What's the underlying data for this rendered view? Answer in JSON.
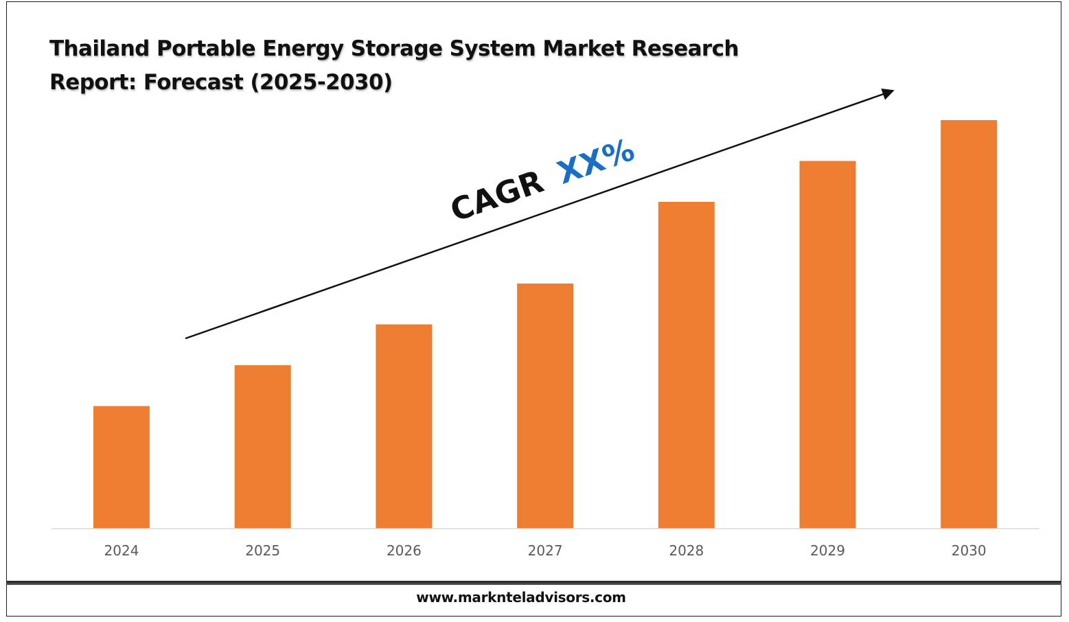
{
  "title_lines": [
    "Thailand Portable Energy Storage System Market Research",
    "Report: Forecast (2025-2030)"
  ],
  "annotation": {
    "cagr_label": "CAGR",
    "cagr_value": "XX%",
    "label_color": "#111111",
    "value_color": "#1a6fc4"
  },
  "footer": {
    "website": "www.marknteladvisors.com"
  },
  "colors": {
    "bar": "#ed7d31",
    "axis": "#d9d9d9",
    "tick_label": "#595959"
  },
  "chart_data": {
    "type": "bar",
    "categories": [
      "2024",
      "2025",
      "2026",
      "2027",
      "2028",
      "2029",
      "2030"
    ],
    "values": [
      30,
      40,
      50,
      60,
      80,
      90,
      100
    ],
    "title": "Thailand Portable Energy Storage System Market Research Report: Forecast (2025-2030)",
    "xlabel": "",
    "ylabel": "",
    "ylim": [
      0,
      100
    ],
    "grid": false,
    "legend": "none",
    "y_axis_visible": false,
    "annotation": "CAGR XX%"
  }
}
